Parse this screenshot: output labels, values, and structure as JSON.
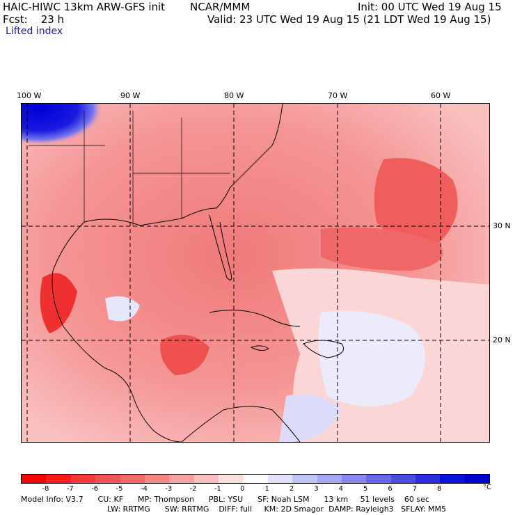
{
  "header": {
    "model_title": "HAIC-HIWC 13km ARW-GFS init",
    "center": "NCAR/MMM",
    "init_text": "Init: 00 UTC Wed 19 Aug 15",
    "fcst_text": "Fcst:    23 h",
    "valid_text": "Valid: 23 UTC Wed 19 Aug 15 (21 LDT Wed 19 Aug 15)",
    "field_name": "Lifted index"
  },
  "map": {
    "longitude_labels": [
      "100 W",
      "90 W",
      "80 W",
      "70 W",
      "60 W"
    ],
    "latitude_labels": [
      "30 N",
      "20 N"
    ]
  },
  "colorbar": {
    "unit": "°C",
    "tick_labels": [
      "-8",
      "-7",
      "-6",
      "-5",
      "-4",
      "-3",
      "-2",
      "-1",
      "0",
      "1",
      "2",
      "3",
      "4",
      "5",
      "6",
      "7",
      "8"
    ],
    "colors": [
      "#ff0000",
      "#ff1a1a",
      "#f33a3a",
      "#f25353",
      "#f36b6b",
      "#f58686",
      "#f7a2a2",
      "#f9bfbf",
      "#fcdede",
      "#ffffff",
      "#e1e1fb",
      "#c3c3f6",
      "#a5a5f2",
      "#8787ee",
      "#6969ea",
      "#4b4be6",
      "#2d2de2",
      "#0f0fde",
      "#0000c8"
    ]
  },
  "footer": {
    "line1": "Model Info: V3.7      CU: KF      MP: Thompson      PBL: YSU      SF: Noah LSM      13 km     51 levels    60 sec",
    "line2": "LW: RRTMG      SW: RRTMG    DIFF: full     KM: 2D Smagor  DAMP: Rayleigh3   SFLAY: MM5"
  }
}
